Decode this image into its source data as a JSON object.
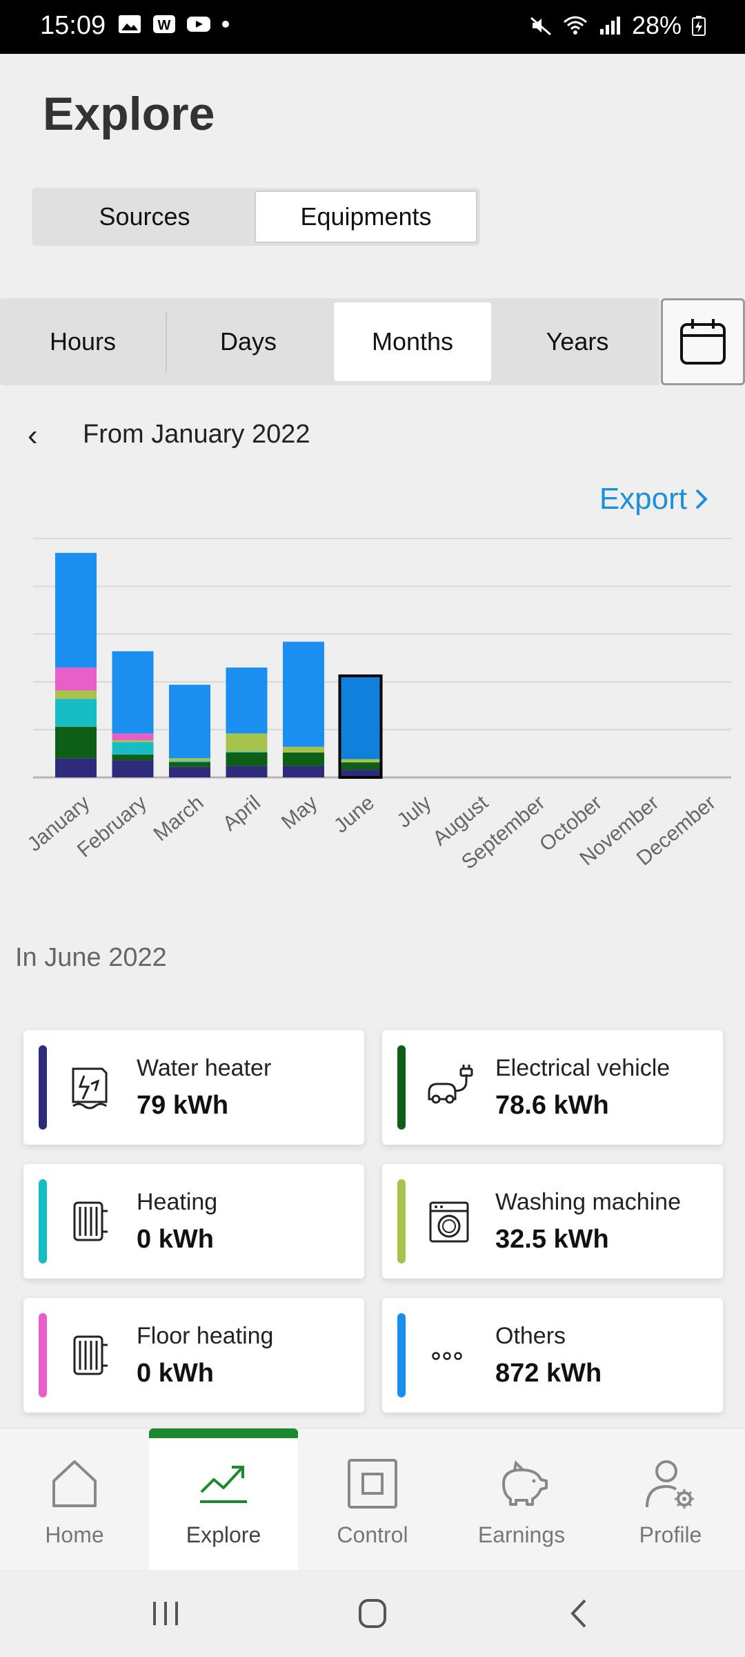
{
  "status_bar": {
    "time": "15:09",
    "battery": "28%"
  },
  "title": "Explore",
  "source_toggle": {
    "options": [
      "Sources",
      "Equipments"
    ],
    "active": "Equipments"
  },
  "period_tabs": {
    "options": [
      "Hours",
      "Days",
      "Months",
      "Years"
    ],
    "active": "Months"
  },
  "date_range": {
    "label": "From January 2022"
  },
  "export": {
    "label": "Export"
  },
  "colors": {
    "water_heater": "#2e2b7a",
    "electrical_vehicle": "#0d5e16",
    "heating": "#17bcc4",
    "washing_machine": "#a8c24e",
    "floor_heating": "#e85fc9",
    "others": "#1b8ff0",
    "accent_green": "#1a8a2c",
    "link_blue": "#1b8fe0"
  },
  "chart_data": {
    "type": "bar",
    "stacked": true,
    "categories": [
      "January",
      "February",
      "March",
      "April",
      "May",
      "June",
      "July",
      "August",
      "September",
      "October",
      "November",
      "December"
    ],
    "selected": "June",
    "ylim": [
      0,
      2500
    ],
    "grid": true,
    "series": [
      {
        "name": "Water heater",
        "values": [
          200,
          180,
          110,
          120,
          120,
          79,
          0,
          0,
          0,
          0,
          0,
          0
        ]
      },
      {
        "name": "Electrical vehicle",
        "values": [
          330,
          60,
          50,
          140,
          140,
          79,
          0,
          0,
          0,
          0,
          0,
          0
        ]
      },
      {
        "name": "Heating",
        "values": [
          290,
          130,
          10,
          10,
          0,
          0,
          0,
          0,
          0,
          0,
          0,
          0
        ]
      },
      {
        "name": "Washing machine",
        "values": [
          90,
          20,
          30,
          190,
          60,
          33,
          0,
          0,
          0,
          0,
          0,
          0
        ]
      },
      {
        "name": "Floor heating",
        "values": [
          240,
          70,
          0,
          0,
          0,
          0,
          0,
          0,
          0,
          0,
          0,
          0
        ]
      },
      {
        "name": "Others",
        "values": [
          1200,
          860,
          770,
          690,
          1100,
          872,
          0,
          0,
          0,
          0,
          0,
          0
        ]
      }
    ]
  },
  "month_summary": {
    "label": "In June 2022",
    "cards": [
      {
        "name": "Water heater",
        "value": "79 kWh",
        "icon": "water-heater-icon",
        "color": "#2e2b7a"
      },
      {
        "name": "Electrical vehicle",
        "value": "78.6 kWh",
        "icon": "ev-plug-icon",
        "color": "#0d5e16"
      },
      {
        "name": "Heating",
        "value": "0 kWh",
        "icon": "radiator-icon",
        "color": "#17bcc4"
      },
      {
        "name": "Washing machine",
        "value": "32.5 kWh",
        "icon": "washing-machine-icon",
        "color": "#a8c24e"
      },
      {
        "name": "Floor heating",
        "value": "0 kWh",
        "icon": "radiator-icon",
        "color": "#e85fc9"
      },
      {
        "name": "Others",
        "value": "872 kWh",
        "icon": "more-dots-icon",
        "color": "#1b8ff0"
      }
    ]
  },
  "bottom_nav": {
    "items": [
      {
        "label": "Home",
        "icon": "home-icon"
      },
      {
        "label": "Explore",
        "icon": "chart-trend-icon"
      },
      {
        "label": "Control",
        "icon": "control-square-icon"
      },
      {
        "label": "Earnings",
        "icon": "piggy-bank-icon"
      },
      {
        "label": "Profile",
        "icon": "profile-gear-icon"
      }
    ],
    "active": "Explore"
  }
}
